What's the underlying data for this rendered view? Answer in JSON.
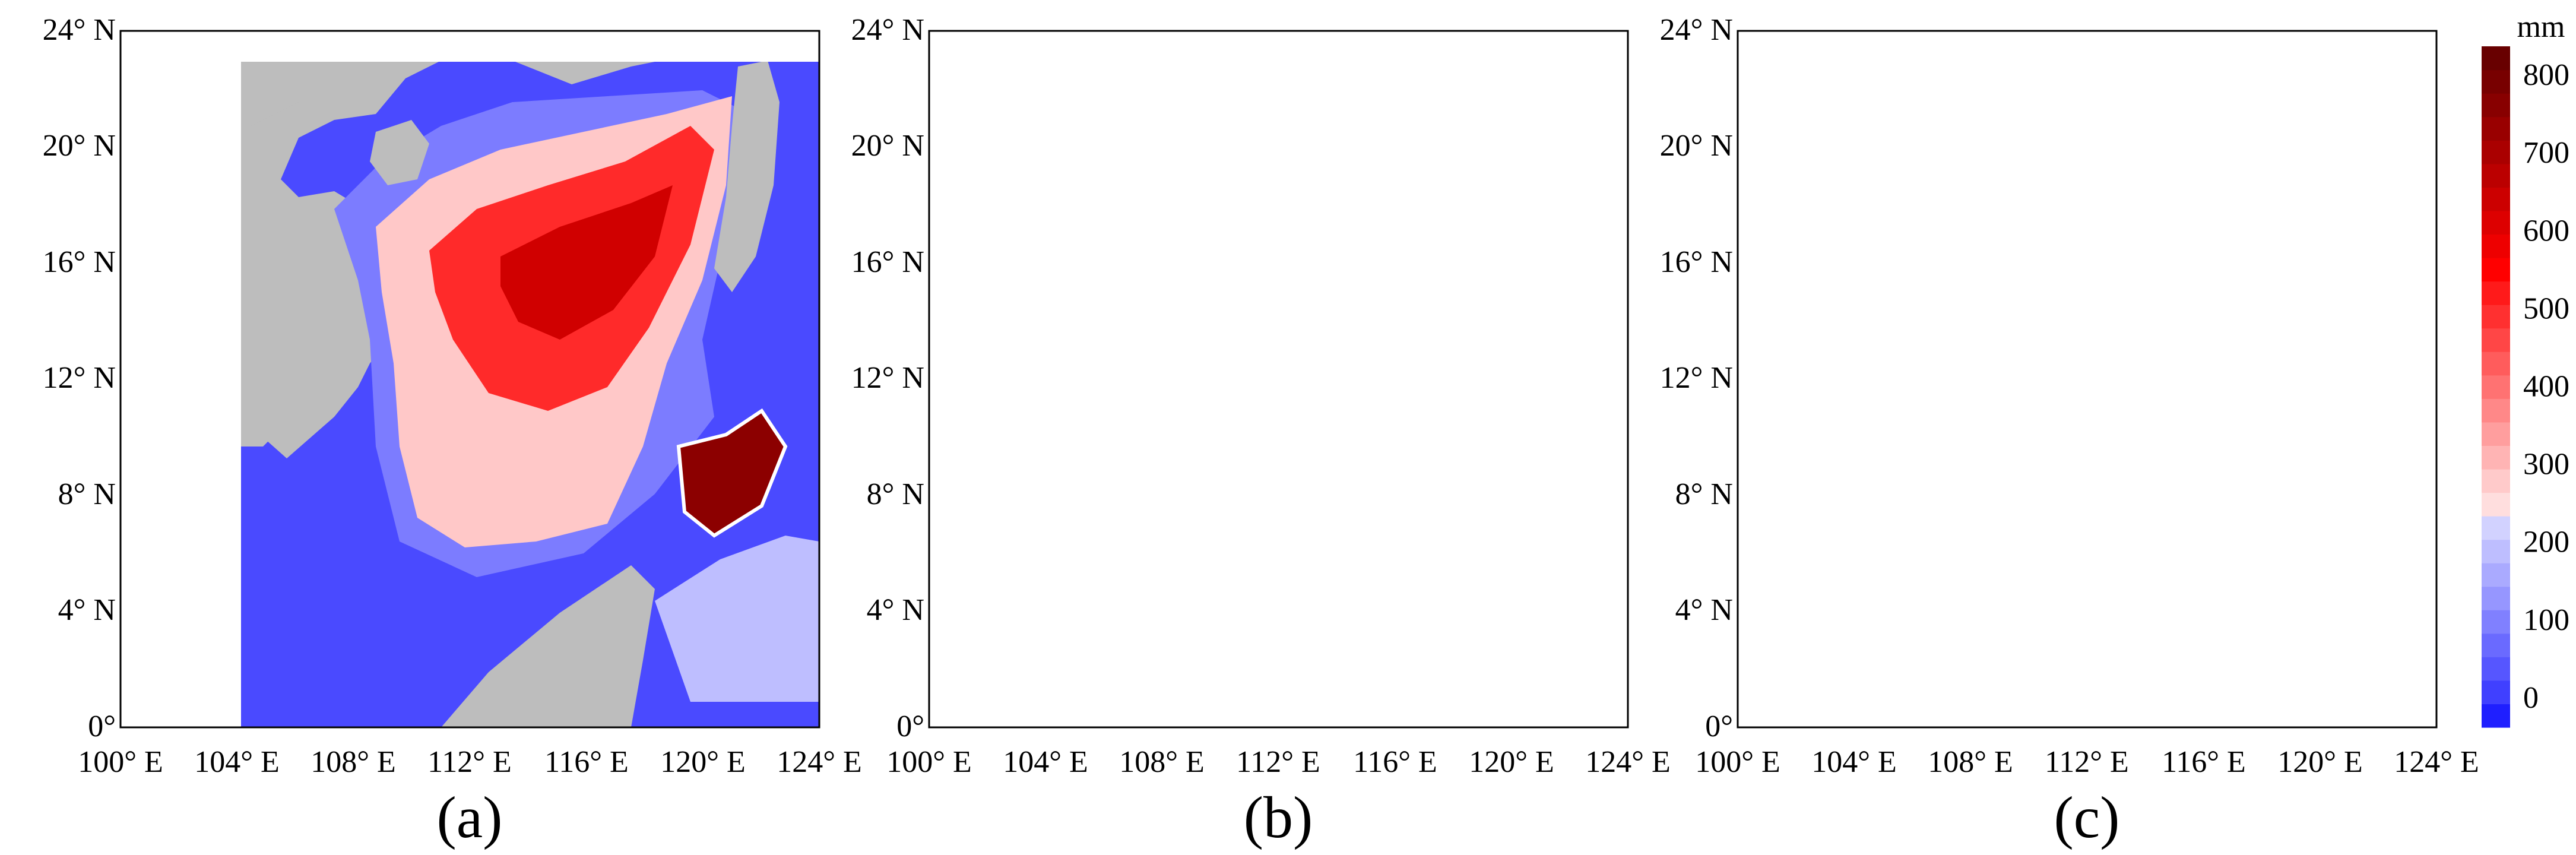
{
  "panels": [
    {
      "caption": "(a)"
    },
    {
      "caption": "(b)"
    },
    {
      "caption": "(c)"
    }
  ],
  "axes": {
    "lat_ticks": [
      "0°",
      "4° N",
      "8° N",
      "12° N",
      "16° N",
      "20° N",
      "24° N"
    ],
    "lon_ticks": [
      "100° E",
      "104° E",
      "108° E",
      "112° E",
      "116° E",
      "120° E",
      "124° E"
    ]
  },
  "colorbar": {
    "unit": "mm",
    "tick_labels": [
      "0",
      "100",
      "200",
      "300",
      "400",
      "500",
      "600",
      "700",
      "800"
    ],
    "levels": [
      -25,
      0,
      25,
      50,
      75,
      100,
      125,
      150,
      175,
      200,
      225,
      250,
      275,
      300,
      325,
      350,
      375,
      400,
      425,
      450,
      475,
      500,
      525,
      550,
      575,
      600,
      625,
      650,
      675,
      700,
      725,
      750,
      775,
      800,
      825
    ],
    "colors": [
      "#1f1fff",
      "#4040ff",
      "#5656ff",
      "#6a6aff",
      "#8080ff",
      "#9696ff",
      "#aaaaff",
      "#bebeff",
      "#d2d2ff",
      "#ffdede",
      "#ffcaca",
      "#ffb4b4",
      "#ff9e9e",
      "#ff8888",
      "#ff7272",
      "#ff5c5c",
      "#ff4646",
      "#ff3030",
      "#ff1a1a",
      "#ff0000",
      "#ee0000",
      "#dd0000",
      "#cc0000",
      "#bb0000",
      "#aa0000",
      "#990000",
      "#880000",
      "#780000",
      "#680000"
    ]
  },
  "colors": {
    "land": "#bdbdbd",
    "ocean_low": "#4a4aff",
    "ocean_mid": "#7c7cff",
    "pink": "#ffc8c8",
    "red": "#ff2a2a",
    "dark_red": "#8c0000"
  }
}
